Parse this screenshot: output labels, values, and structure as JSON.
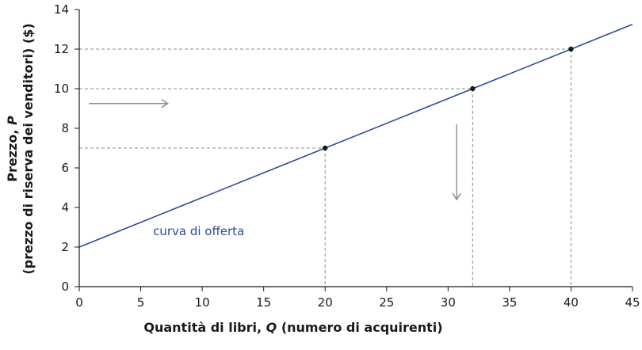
{
  "chart_data": {
    "type": "line",
    "xlabel_parts": [
      "Quantità di libri, ",
      "Q",
      " (numero di acquirenti)"
    ],
    "ylabel_line1_parts": [
      "Prezzo, ",
      "P"
    ],
    "ylabel_line2": "(prezzo di riserva dei venditori) ($)",
    "xlim": [
      0,
      45
    ],
    "ylim": [
      0,
      14
    ],
    "x_ticks": [
      0,
      5,
      10,
      15,
      20,
      25,
      30,
      35,
      40,
      45
    ],
    "y_ticks": [
      0,
      2,
      4,
      6,
      8,
      10,
      12,
      14
    ],
    "grid": false,
    "series": [
      {
        "name": "curva di offerta",
        "color": "#2b4b9b",
        "x": [
          0,
          45
        ],
        "y": [
          2,
          13.25
        ]
      }
    ],
    "points": [
      {
        "x": 20,
        "y": 7
      },
      {
        "x": 32,
        "y": 10
      },
      {
        "x": 40,
        "y": 12
      }
    ],
    "arrows": [
      {
        "direction": "right",
        "from": [
          0.8,
          9.25
        ],
        "to": [
          7.2,
          9.25
        ]
      },
      {
        "direction": "down",
        "from": [
          30.7,
          8.2
        ],
        "to": [
          30.7,
          4.4
        ]
      }
    ],
    "label": {
      "text": "curva di offerta",
      "x": 6,
      "y": 2.6,
      "color": "#2b4b9b"
    },
    "colors": {
      "axis": "#1a1a1a",
      "guide": "#8c8c8c",
      "arrow": "#8c8c8c",
      "point": "#1a1a1a"
    }
  }
}
